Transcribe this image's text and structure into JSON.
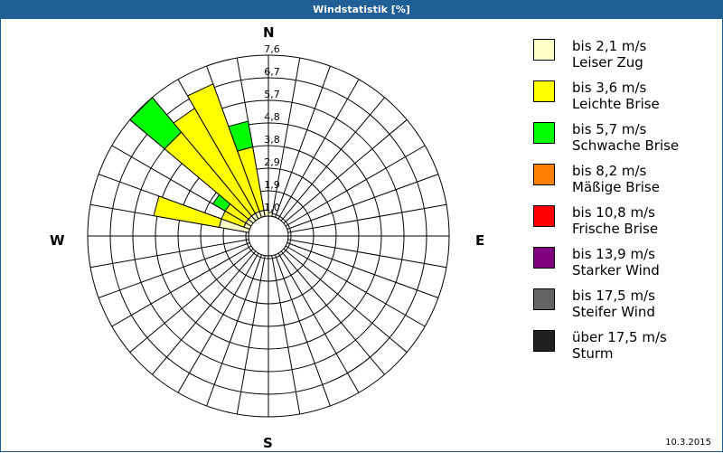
{
  "window": {
    "title": "Windstatistik [%]"
  },
  "compass": {
    "n": "N",
    "e": "E",
    "s": "S",
    "w": "W"
  },
  "legend": [
    {
      "range": "bis 2,1 m/s",
      "name": "Leiser Zug",
      "color": "#ffffc8"
    },
    {
      "range": "bis 3,6 m/s",
      "name": "Leichte Brise",
      "color": "#ffff00"
    },
    {
      "range": "bis 5,7 m/s",
      "name": "Schwache Brise",
      "color": "#00ff00"
    },
    {
      "range": "bis 8,2 m/s",
      "name": "Mäßige Brise",
      "color": "#ff8000"
    },
    {
      "range": "bis 10,8 m/s",
      "name": "Frische Brise",
      "color": "#ff0000"
    },
    {
      "range": "bis 13,9 m/s",
      "name": "Starker Wind",
      "color": "#800080"
    },
    {
      "range": "bis 17,5 m/s",
      "name": "Steifer Wind",
      "color": "#646464"
    },
    {
      "range": "über 17,5 m/s",
      "name": "Sturm",
      "color": "#202020"
    }
  ],
  "footer": {
    "date": "10.3.2015"
  },
  "chart_data": {
    "type": "wind-rose",
    "title": "Windstatistik [%]",
    "radial_ticks": [
      "1,0",
      "1,9",
      "2,9",
      "3,8",
      "4,8",
      "5,7",
      "6,7",
      "7,6"
    ],
    "radial_max": 7.6,
    "sector_width_deg": 10,
    "classes": [
      "Leiser Zug",
      "Leichte Brise",
      "Schwache Brise",
      "Mäßige Brise",
      "Frische Brise",
      "Starker Wind",
      "Steifer Wind",
      "Sturm"
    ],
    "sectors": [
      {
        "dir": 5,
        "values": [
          1.0,
          0,
          0
        ]
      },
      {
        "dir": 15,
        "values": [
          0.6,
          0,
          0
        ]
      },
      {
        "dir": 25,
        "values": [
          0.3,
          0,
          0
        ]
      },
      {
        "dir": 195,
        "values": [
          0.6,
          0,
          0
        ]
      },
      {
        "dir": 265,
        "values": [
          0.3,
          0,
          0
        ]
      },
      {
        "dir": 275,
        "values": [
          0.8,
          0,
          0
        ]
      },
      {
        "dir": 285,
        "values": [
          2.1,
          2.8,
          0
        ]
      },
      {
        "dir": 295,
        "values": [
          1.1,
          1.0,
          0
        ]
      },
      {
        "dir": 305,
        "values": [
          1.1,
          1.0,
          0.6
        ]
      },
      {
        "dir": 315,
        "values": [
          1.1,
          4.6,
          1.9
        ]
      },
      {
        "dir": 325,
        "values": [
          1.1,
          5.1,
          0
        ]
      },
      {
        "dir": 335,
        "values": [
          1.1,
          5.7,
          0
        ]
      },
      {
        "dir": 345,
        "values": [
          1.1,
          2.7,
          1.1
        ]
      },
      {
        "dir": 355,
        "values": [
          1.1,
          0,
          0
        ]
      }
    ],
    "legend_position": "right"
  }
}
